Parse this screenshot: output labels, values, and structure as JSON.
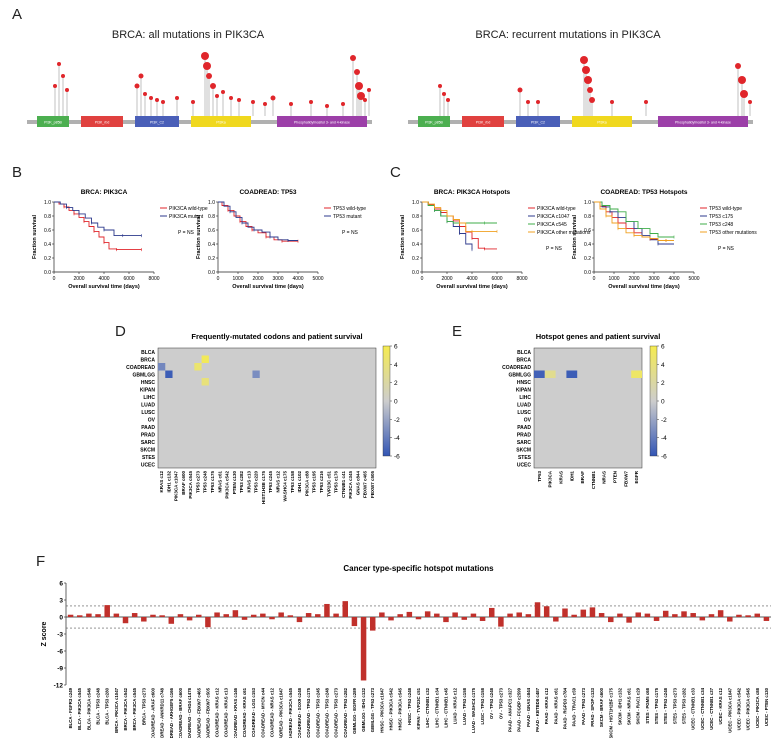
{
  "panels": {
    "A": "A",
    "B": "B",
    "C": "C",
    "D": "D",
    "E": "E",
    "F": "F"
  },
  "panel_a": {
    "left_title": "BRCA: all mutations in PIK3CA",
    "right_title": "BRCA: recurrent mutations in PIK3CA",
    "domains": [
      "PI3K_p85B",
      "PI3K_rbd",
      "PI3K_C2",
      "PI3Ka",
      "Phosphatidylinositol 3- and 4-kinase"
    ],
    "colors": {
      "p85B": "#4caf50",
      "rbd": "#e0413f",
      "C2": "#4a5fb8",
      "pi3ka": "#f0d81e",
      "kinase": "#9c3fa8",
      "lollipop": "#e0262b",
      "backbone": "#b0b0b0"
    }
  },
  "chart_data": [
    {
      "id": "B-left",
      "type": "line",
      "title": "BRCA: PIK3CA",
      "xlabel": "Overall survival time (days)",
      "ylabel": "Fraction survival",
      "xlim": [
        0,
        8000
      ],
      "ylim": [
        0,
        1.0
      ],
      "xticks": [
        0,
        2000,
        4000,
        6000,
        8000
      ],
      "yticks": [
        0.0,
        0.2,
        0.4,
        0.6,
        0.8,
        1.0
      ],
      "annotation": "P = NS",
      "series": [
        {
          "name": "PIK3CA wild-type",
          "color": "#e0262b",
          "x": [
            0,
            400,
            800,
            1200,
            1600,
            2000,
            2400,
            2800,
            3200,
            3600,
            4000,
            4400,
            5000,
            6000,
            7000
          ],
          "y": [
            1.0,
            0.97,
            0.93,
            0.88,
            0.83,
            0.78,
            0.72,
            0.65,
            0.58,
            0.5,
            0.42,
            0.33,
            0.32,
            0.32,
            0.32
          ]
        },
        {
          "name": "PIK3CA mutant",
          "color": "#2d3a8c",
          "x": [
            0,
            500,
            1000,
            1500,
            2000,
            2500,
            3000,
            3500,
            4000,
            4800,
            5500,
            6000,
            7000
          ],
          "y": [
            1.0,
            0.97,
            0.92,
            0.88,
            0.83,
            0.77,
            0.7,
            0.64,
            0.6,
            0.52,
            0.52,
            0.52,
            0.52
          ]
        }
      ]
    },
    {
      "id": "B-right",
      "type": "line",
      "title": "COADREAD: TP53",
      "xlabel": "Overall survival time (days)",
      "ylabel": "Fraction survival",
      "xlim": [
        0,
        5000
      ],
      "ylim": [
        0,
        1.0
      ],
      "xticks": [
        0,
        1000,
        2000,
        3000,
        4000,
        5000
      ],
      "yticks": [
        0.0,
        0.2,
        0.4,
        0.6,
        0.8,
        1.0
      ],
      "annotation": "P = NS",
      "series": [
        {
          "name": "TP53 wild-type",
          "color": "#e0262b",
          "x": [
            0,
            200,
            500,
            800,
            1100,
            1400,
            1700,
            2000,
            2400,
            2800,
            3200,
            3600,
            4000
          ],
          "y": [
            1.0,
            0.95,
            0.88,
            0.8,
            0.72,
            0.65,
            0.6,
            0.56,
            0.5,
            0.46,
            0.44,
            0.44,
            0.44
          ]
        },
        {
          "name": "TP53 mutant",
          "color": "#2d3a8c",
          "x": [
            0,
            300,
            600,
            900,
            1200,
            1500,
            1800,
            2200,
            2600,
            3000,
            3500,
            4000
          ],
          "y": [
            1.0,
            0.94,
            0.86,
            0.78,
            0.7,
            0.64,
            0.6,
            0.57,
            0.5,
            0.46,
            0.45,
            0.45
          ]
        }
      ]
    },
    {
      "id": "C-left",
      "type": "line",
      "title": "BRCA: PIK3CA Hotspots",
      "xlabel": "Overall survival time (days)",
      "ylabel": "Fraction survival",
      "xlim": [
        0,
        8000
      ],
      "ylim": [
        0,
        1.0
      ],
      "xticks": [
        0,
        2000,
        4000,
        6000,
        8000
      ],
      "yticks": [
        0.0,
        0.2,
        0.4,
        0.6,
        0.8,
        1.0
      ],
      "annotation": "P = NS",
      "series": [
        {
          "name": "PIK3CA wild-type",
          "color": "#e0262b",
          "x": [
            0,
            500,
            1000,
            1500,
            2000,
            2500,
            3000,
            3500,
            4000,
            4500,
            5000,
            6000
          ],
          "y": [
            1.0,
            0.96,
            0.9,
            0.85,
            0.8,
            0.73,
            0.65,
            0.57,
            0.48,
            0.34,
            0.33,
            0.33
          ]
        },
        {
          "name": "PIK3CA c1047",
          "color": "#2d3a8c",
          "x": [
            0,
            500,
            1000,
            1500,
            2000,
            2500,
            3000,
            3500,
            4000
          ],
          "y": [
            1.0,
            0.95,
            0.88,
            0.8,
            0.72,
            0.65,
            0.55,
            0.4,
            0.32
          ]
        },
        {
          "name": "PIK3CA c545",
          "color": "#3fae49",
          "x": [
            0,
            500,
            1000,
            1500,
            2000,
            2500,
            3000,
            4000,
            5000,
            6000
          ],
          "y": [
            1.0,
            0.95,
            0.88,
            0.8,
            0.72,
            0.7,
            0.7,
            0.7,
            0.7,
            0.7
          ]
        },
        {
          "name": "PIK3CA other mutations",
          "color": "#f0a020",
          "x": [
            0,
            500,
            1000,
            1500,
            2000,
            2500,
            3000,
            3500,
            4000,
            5000,
            6000
          ],
          "y": [
            1.0,
            0.97,
            0.92,
            0.88,
            0.8,
            0.75,
            0.7,
            0.58,
            0.58,
            0.58,
            0.58
          ]
        }
      ]
    },
    {
      "id": "C-right",
      "type": "line",
      "title": "COADREAD: TP53 Hotspots",
      "xlabel": "Overall survival time (days)",
      "ylabel": "Fraction survival",
      "xlim": [
        0,
        5000
      ],
      "ylim": [
        0,
        1.0
      ],
      "xticks": [
        0,
        1000,
        2000,
        3000,
        4000,
        5000
      ],
      "yticks": [
        0.0,
        0.2,
        0.4,
        0.6,
        0.8,
        1.0
      ],
      "annotation": "P = NS",
      "series": [
        {
          "name": "TP53 wild-type",
          "color": "#e0262b",
          "x": [
            0,
            300,
            600,
            900,
            1200,
            1600,
            2000,
            2400,
            2800,
            3200,
            3600,
            4000
          ],
          "y": [
            1.0,
            0.94,
            0.86,
            0.78,
            0.7,
            0.62,
            0.56,
            0.5,
            0.47,
            0.45,
            0.45,
            0.45
          ]
        },
        {
          "name": "TP53 c175",
          "color": "#2d3a8c",
          "x": [
            0,
            400,
            800,
            1200,
            1600,
            2000,
            2400,
            2800,
            3200,
            4000
          ],
          "y": [
            1.0,
            0.93,
            0.86,
            0.78,
            0.72,
            0.62,
            0.52,
            0.46,
            0.4,
            0.4
          ]
        },
        {
          "name": "TP53 c248",
          "color": "#3fae49",
          "x": [
            0,
            400,
            800,
            1200,
            1600,
            2200,
            2800,
            3200,
            4000
          ],
          "y": [
            1.0,
            0.95,
            0.9,
            0.86,
            0.72,
            0.62,
            0.55,
            0.5,
            0.5
          ]
        },
        {
          "name": "TP53 other mutations",
          "color": "#f0a020",
          "x": [
            0,
            300,
            600,
            900,
            1200,
            1600,
            2000,
            2400,
            2800,
            3200,
            3600,
            4000
          ],
          "y": [
            1.0,
            0.9,
            0.8,
            0.7,
            0.62,
            0.56,
            0.52,
            0.5,
            0.48,
            0.45,
            0.45,
            0.45
          ]
        }
      ]
    },
    {
      "id": "D",
      "type": "heatmap",
      "title": "Frequently-mutated codons and patient survival",
      "rows": [
        "BLCA",
        "BRCA",
        "COADREAD",
        "GBMLGG",
        "HNSC",
        "KIPAN",
        "LIHC",
        "LUAD",
        "LUSC",
        "OV",
        "PAAD",
        "PRAD",
        "SARC",
        "SKCM",
        "STES",
        "UCEC"
      ],
      "columns": [
        "KRAS c12",
        "IDH1 c132",
        "PIK3CA c1047",
        "BRAF c600",
        "PIK3CA c545",
        "TP53 c273",
        "TP53 c248",
        "TP53 c175",
        "NRAS c61",
        "PIK3CA c542",
        "PTEN c130",
        "TP53 c282",
        "KRAS c13",
        "TP53 c220",
        "HIST1H3B c175",
        "TP53 c245",
        "NRAS c12",
        "WASHC4 c175",
        "TP53 c158",
        "IDH1 c102",
        "PIK3CA c88",
        "TP53 c195",
        "TP53 c216",
        "TVP23C c51",
        "TP53 c176",
        "CTNNB1 c41",
        "PIK3CA c345",
        "GNAS c844",
        "FBXW7 c465",
        "FBXW7 c505"
      ],
      "color_range": [
        -6,
        6
      ],
      "colorbar_ticks": [
        6,
        4,
        2,
        0,
        -2,
        -4,
        -6
      ],
      "cells": [
        {
          "row": "BRCA",
          "col": "TP53 c248",
          "value": 5.6
        },
        {
          "row": "COADREAD",
          "col": "KRAS c12",
          "value": -3.5
        },
        {
          "row": "COADREAD",
          "col": "TP53 c273",
          "value": 4.5
        },
        {
          "row": "GBMLGG",
          "col": "IDH1 c132",
          "value": -5.6
        },
        {
          "row": "GBMLGG",
          "col": "TP53 c220",
          "value": -3.2
        },
        {
          "row": "HNSC",
          "col": "TP53 c248",
          "value": 4.0
        }
      ]
    },
    {
      "id": "E",
      "type": "heatmap",
      "title": "Hotspot genes and patient survival",
      "rows": [
        "BLCA",
        "BRCA",
        "COADREAD",
        "GBMLGG",
        "HNSC",
        "KIPAN",
        "LIHC",
        "LUAD",
        "LUSC",
        "OV",
        "PAAD",
        "PRAD",
        "SARC",
        "SKCM",
        "STES",
        "UCEC"
      ],
      "columns": [
        "TP53",
        "PIK3CA",
        "KRAS",
        "IDH1",
        "BRAF",
        "CTNNB1",
        "NRAS",
        "PTEN",
        "FBXW7",
        "EGFR"
      ],
      "color_range": [
        -6,
        6
      ],
      "colorbar_ticks": [
        6,
        4,
        2,
        0,
        -2,
        -4,
        -6
      ],
      "cells": [
        {
          "row": "GBMLGG",
          "col": "TP53",
          "value": -5.4
        },
        {
          "row": "GBMLGG",
          "col": "PIK3CA",
          "value": 3.0
        },
        {
          "row": "GBMLGG",
          "col": "IDH1",
          "value": -5.6
        },
        {
          "row": "GBMLGG",
          "col": "EGFR",
          "value": 5.0
        }
      ]
    },
    {
      "id": "F",
      "type": "bar",
      "title": "Cancer type-specific hotspot mutations",
      "ylabel": "Z score",
      "ylim": [
        -12,
        6
      ],
      "yticks": [
        6,
        3,
        0,
        -3,
        -6,
        -9,
        -12
      ],
      "threshold_lines": [
        1.96,
        -1.96
      ],
      "color": "#c0302b",
      "categories": [
        "BLCA - FGFR3 c249",
        "BLCA - PIK3CA c545",
        "BLCA - PIK3CA c546",
        "BLCA - TP53 c248",
        "BLCA - TP53 c280",
        "BRCA - PIK3CA c1047",
        "BRCA - PIK3CA c542",
        "BRCA - PIK3CA c545",
        "BRCA - TP53 c273",
        "COADREAD - ARAF c600",
        "COADREAD - ANKRD11 c748",
        "COADREAD - ARHGEF5 c166",
        "COADREAD - BRAF c600",
        "COADREAD - CHD4 c1478",
        "COADREAD - FBXW7 c465",
        "COADREAD - FBXW7 c505",
        "COADREAD - KRAS c12",
        "COADREAD - KRAS c13",
        "COADREAD - KRAS c146",
        "COADREAD - KRAS c61",
        "COADREAD - LGI1 c153",
        "COADREAD - MYCN c44",
        "COADREAD - NRAS c12",
        "COADREAD - PIK3CA c1047",
        "COADREAD - PIK3CA c545",
        "COADREAD - SOX9 c248",
        "COADREAD - TP53 c175",
        "COADREAD - TP53 c245",
        "COADREAD - TP53 c248",
        "COADREAD - TP53 c273",
        "COADREAD - TP53 c282",
        "GBMLGG - EGFR c289",
        "GBMLGG - IDH1 c132",
        "GBMLGG - TP53 c273",
        "HNSC - PIK3CA c1047",
        "HNSC - PIK3CA c542",
        "HNSC - PIK3CA c545",
        "HNSC - TP53 c248",
        "KIPAN - TVP23C c51",
        "LIHC - CTNNB1 c32",
        "LIHC - CTNNB1 c34",
        "LIHC - CTNNB1 c45",
        "LUAD - KRAS c12",
        "LUAD - TP53 c158",
        "LUAD - WASHC4 c175",
        "LUSC - TP53 c158",
        "OV - TP53 c248",
        "OV - TP53 c273",
        "PAAD - ANAPC1 c327",
        "PAAD - FCGBP c2599",
        "PAAD - GNAS c844",
        "PAAD - KBTBD8 c487",
        "PAAD - KRAS c12",
        "PAAD - KRAS c61",
        "PAAD - RGPD3 c784",
        "PAAD - TRAC1 c59",
        "PAAD - TP53 c273",
        "PRAD - SPOP c133",
        "SKCM - BRAF c600",
        "SKCM - HIST1H2BF c175",
        "SKCM - IDH1 c132",
        "SKCM - NRAS c61",
        "SKCM - RAC1 c29",
        "STES - PGM5 c68",
        "STES - TP53 c175",
        "STES - TP53 c248",
        "STES - TP53 c273",
        "STES - TP53 c282",
        "UCEC - CTNNB1 c33",
        "UCEC - CTNNB1 c34",
        "UCEC - CTNNB1 c37",
        "UCEC - KRAS c12",
        "UCEC - PIK3CA c1047",
        "UCEC - PIK3CA c542",
        "UCEC - PIK3CA c545",
        "UCEC - PIK3CA c88",
        "UCEC - PTEN c130"
      ],
      "values": [
        0.4,
        0.3,
        0.6,
        0.5,
        2.1,
        0.6,
        -1.1,
        0.7,
        -0.8,
        0.4,
        0.3,
        -1.2,
        0.5,
        -0.6,
        0.4,
        -1.8,
        0.8,
        0.5,
        1.2,
        -0.5,
        0.4,
        0.6,
        -0.4,
        0.8,
        0.3,
        -0.9,
        0.7,
        0.5,
        2.3,
        0.6,
        2.8,
        -1.6,
        -11.2,
        -2.4,
        0.8,
        -0.6,
        0.5,
        0.9,
        -0.4,
        1.0,
        0.6,
        -0.9,
        0.8,
        -0.5,
        0.6,
        -0.7,
        1.6,
        -1.7,
        0.6,
        0.8,
        0.5,
        2.6,
        1.9,
        -0.8,
        1.5,
        0.4,
        1.3,
        1.7,
        0.7,
        -0.9,
        0.6,
        -1.0,
        0.8,
        0.6,
        -0.7,
        1.1,
        0.5,
        1.0,
        0.7,
        -0.6,
        0.5,
        1.2,
        -0.8,
        0.4,
        0.3,
        0.6,
        -0.7
      ]
    }
  ]
}
